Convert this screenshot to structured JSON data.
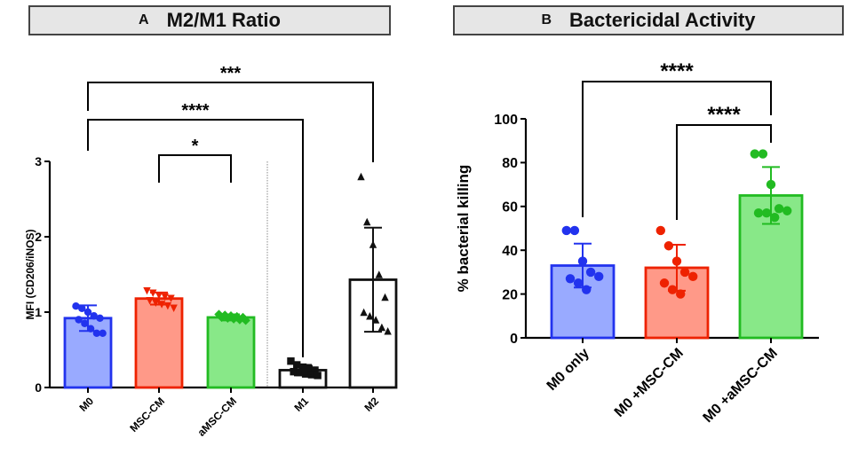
{
  "chart_data": [
    {
      "type": "bar",
      "panel_letter": "A",
      "title": "M2/M1 Ratio",
      "ylabel": "MFI (CD206/iNOS)",
      "xlabel": "",
      "ylim": [
        0,
        3
      ],
      "yticks": [
        "0",
        "1",
        "2",
        "3"
      ],
      "categories": [
        "M0",
        "MSC-CM",
        "aMSC-CM",
        "M1",
        "M2"
      ],
      "values": [
        0.92,
        1.18,
        0.93,
        0.23,
        1.43
      ],
      "sd": [
        0.17,
        0.08,
        0.04,
        0.07,
        0.69
      ],
      "colors": [
        "#2233ee",
        "#ee2200",
        "#22bb22",
        "#111111",
        "#111111"
      ],
      "fills": [
        "#99aaff",
        "#ff9988",
        "#88e888",
        "#ffffff",
        "#ffffff"
      ],
      "points": [
        [
          1.08,
          1.05,
          1.0,
          0.95,
          0.92,
          0.9,
          0.85,
          0.78,
          0.72,
          0.72
        ],
        [
          1.28,
          1.25,
          1.22,
          1.2,
          1.18,
          1.15,
          1.12,
          1.1,
          1.08,
          1.05
        ],
        [
          0.97,
          0.96,
          0.95,
          0.94,
          0.93,
          0.93,
          0.92,
          0.91,
          0.9,
          0.89
        ],
        [
          0.35,
          0.3,
          0.27,
          0.25,
          0.23,
          0.21,
          0.2,
          0.18,
          0.17,
          0.16
        ],
        [
          2.8,
          2.2,
          1.9,
          1.5,
          1.2,
          1.0,
          0.95,
          0.9,
          0.8,
          0.75
        ]
      ],
      "markers": [
        "circle",
        "triangle-down",
        "diamond",
        "square",
        "triangle-up"
      ],
      "significance": [
        {
          "from": 0,
          "to": 4,
          "label": "***"
        },
        {
          "from": 0,
          "to": 3,
          "label": "****"
        },
        {
          "from": 1,
          "to": 2,
          "label": "*"
        }
      ]
    },
    {
      "type": "bar",
      "panel_letter": "B",
      "title": "Bactericidal Activity",
      "ylabel": "% bacterial killing",
      "xlabel": "",
      "ylim": [
        0,
        100
      ],
      "yticks": [
        "0",
        "20",
        "40",
        "60",
        "80",
        "100"
      ],
      "categories": [
        "M0 only",
        "M0 +MSC-CM",
        "M0 +aMSC-CM"
      ],
      "values": [
        33,
        32,
        65
      ],
      "sd": [
        10,
        10.5,
        13
      ],
      "colors": [
        "#2233ee",
        "#ee2200",
        "#22bb22"
      ],
      "fills": [
        "#99aaff",
        "#ff9988",
        "#88e888"
      ],
      "points": [
        [
          49,
          49,
          35,
          30,
          28,
          27,
          25,
          22
        ],
        [
          49,
          42,
          35,
          30,
          28,
          25,
          22,
          20
        ],
        [
          84,
          84,
          70,
          59,
          58,
          57,
          57,
          55
        ]
      ],
      "significance": [
        {
          "from": 0,
          "to": 2,
          "label": "****"
        },
        {
          "from": 1,
          "to": 2,
          "label": "****"
        }
      ]
    }
  ]
}
